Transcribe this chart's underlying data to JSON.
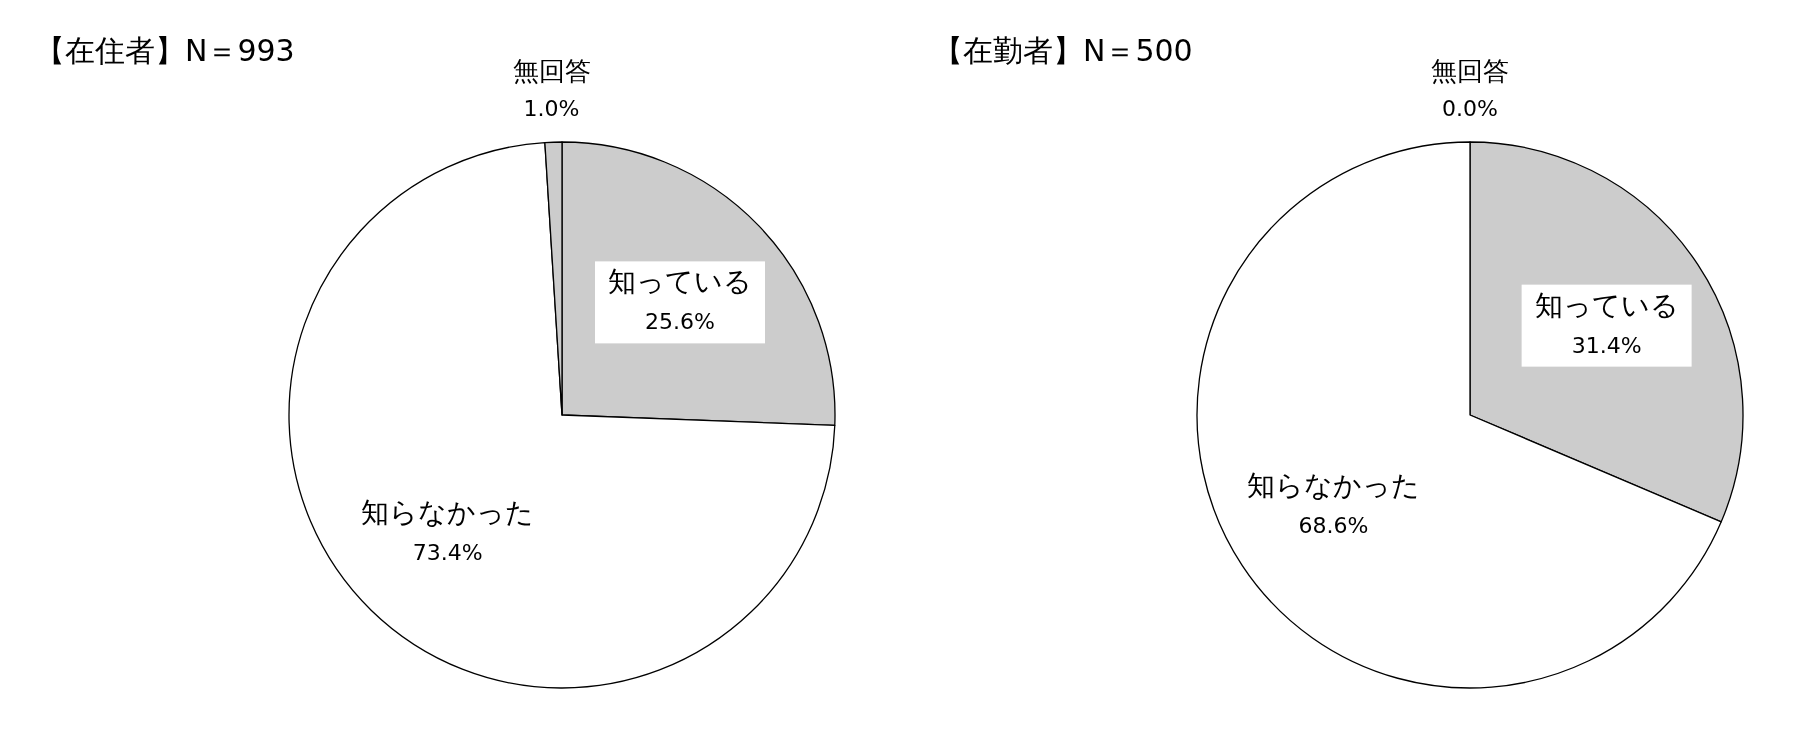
{
  "chart_data": [
    {
      "type": "pie",
      "title": "【在住者】N＝993",
      "categories": [
        "知っている",
        "知らなかった",
        "無回答"
      ],
      "values": [
        25.6,
        73.4,
        1.0
      ],
      "value_labels": [
        "25.6%",
        "73.4%",
        "1.0%"
      ],
      "colors": [
        "#cccccc",
        "#ffffff",
        "#cccccc"
      ]
    },
    {
      "type": "pie",
      "title": "【在勤者】N＝500",
      "categories": [
        "知っている",
        "知らなかった",
        "無回答"
      ],
      "values": [
        31.4,
        68.6,
        0.0
      ],
      "value_labels": [
        "31.4%",
        "68.6%",
        "0.0%"
      ],
      "colors": [
        "#cccccc",
        "#ffffff",
        "#cccccc"
      ]
    }
  ]
}
